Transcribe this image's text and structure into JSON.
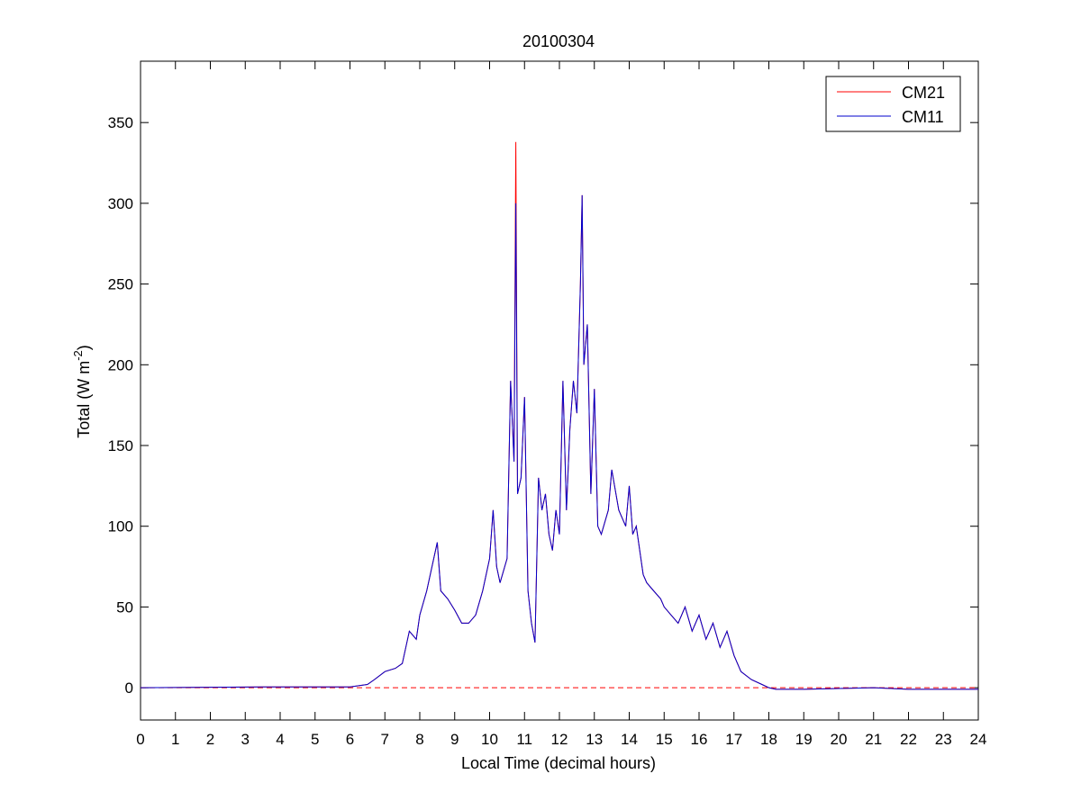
{
  "chart_data": {
    "type": "line",
    "title": "20100304",
    "xlabel": "Local Time (decimal hours)",
    "ylabel": {
      "prefix": "Total (W m",
      "superscript": "-2",
      "suffix": ")"
    },
    "xlim": [
      0,
      24
    ],
    "ylim": [
      -20,
      388
    ],
    "xticks": [
      0,
      1,
      2,
      3,
      4,
      5,
      6,
      7,
      8,
      9,
      10,
      11,
      12,
      13,
      14,
      15,
      16,
      17,
      18,
      19,
      20,
      21,
      22,
      23,
      24
    ],
    "yticks": [
      0,
      50,
      100,
      150,
      200,
      250,
      300,
      350
    ],
    "grid": false,
    "legend_position": "top-right",
    "reference_line": {
      "y": 0,
      "style": "dashed",
      "color": "#ff0000"
    },
    "series": [
      {
        "name": "CM21",
        "color": "#ff0000",
        "x": [
          0,
          3.5,
          6.0,
          6.5,
          6.7,
          7.0,
          7.3,
          7.5,
          7.7,
          7.9,
          8.0,
          8.2,
          8.4,
          8.5,
          8.6,
          8.8,
          9.0,
          9.2,
          9.4,
          9.6,
          9.8,
          10.0,
          10.1,
          10.2,
          10.3,
          10.5,
          10.6,
          10.7,
          10.75,
          10.8,
          10.9,
          11.0,
          11.1,
          11.2,
          11.3,
          11.4,
          11.5,
          11.6,
          11.7,
          11.8,
          11.9,
          12.0,
          12.1,
          12.2,
          12.3,
          12.4,
          12.5,
          12.6,
          12.65,
          12.7,
          12.8,
          12.9,
          13.0,
          13.1,
          13.2,
          13.4,
          13.5,
          13.7,
          13.9,
          14.0,
          14.1,
          14.2,
          14.4,
          14.5,
          14.7,
          14.9,
          15.0,
          15.2,
          15.4,
          15.6,
          15.8,
          16.0,
          16.2,
          16.4,
          16.6,
          16.8,
          17.0,
          17.2,
          17.5,
          17.8,
          18.0,
          18.2,
          19,
          20,
          21,
          22,
          23,
          24
        ],
        "y": [
          0,
          0.5,
          0.5,
          2,
          5,
          10,
          12,
          15,
          35,
          30,
          45,
          60,
          80,
          90,
          60,
          55,
          48,
          40,
          40,
          45,
          60,
          80,
          110,
          75,
          65,
          80,
          190,
          140,
          338,
          120,
          130,
          180,
          60,
          40,
          28,
          130,
          110,
          120,
          95,
          85,
          110,
          95,
          190,
          110,
          160,
          190,
          170,
          250,
          305,
          200,
          225,
          120,
          185,
          100,
          95,
          110,
          135,
          110,
          100,
          125,
          95,
          100,
          70,
          65,
          60,
          55,
          50,
          45,
          40,
          50,
          35,
          45,
          30,
          40,
          25,
          35,
          20,
          10,
          5,
          2,
          0,
          -1,
          -1,
          -0.5,
          0,
          -1,
          -1,
          -1
        ]
      },
      {
        "name": "CM11",
        "color": "#0000cc",
        "x": [
          0,
          3.5,
          6.0,
          6.5,
          6.7,
          7.0,
          7.3,
          7.5,
          7.7,
          7.9,
          8.0,
          8.2,
          8.4,
          8.5,
          8.6,
          8.8,
          9.0,
          9.2,
          9.4,
          9.6,
          9.8,
          10.0,
          10.1,
          10.2,
          10.3,
          10.5,
          10.6,
          10.7,
          10.75,
          10.8,
          10.9,
          11.0,
          11.1,
          11.2,
          11.3,
          11.4,
          11.5,
          11.6,
          11.7,
          11.8,
          11.9,
          12.0,
          12.1,
          12.2,
          12.3,
          12.4,
          12.5,
          12.6,
          12.65,
          12.7,
          12.8,
          12.9,
          13.0,
          13.1,
          13.2,
          13.4,
          13.5,
          13.7,
          13.9,
          14.0,
          14.1,
          14.2,
          14.4,
          14.5,
          14.7,
          14.9,
          15.0,
          15.2,
          15.4,
          15.6,
          15.8,
          16.0,
          16.2,
          16.4,
          16.6,
          16.8,
          17.0,
          17.2,
          17.5,
          17.8,
          18.0,
          18.2,
          19,
          20,
          21,
          22,
          23,
          24
        ],
        "y": [
          0,
          0.5,
          0.5,
          2,
          5,
          10,
          12,
          15,
          35,
          30,
          45,
          60,
          80,
          90,
          60,
          55,
          48,
          40,
          40,
          45,
          60,
          80,
          110,
          75,
          65,
          80,
          190,
          140,
          300,
          120,
          130,
          180,
          60,
          40,
          28,
          130,
          110,
          120,
          95,
          85,
          110,
          95,
          190,
          110,
          160,
          190,
          170,
          250,
          305,
          200,
          225,
          120,
          185,
          100,
          95,
          110,
          135,
          110,
          100,
          125,
          95,
          100,
          70,
          65,
          60,
          55,
          50,
          45,
          40,
          50,
          35,
          45,
          30,
          40,
          25,
          35,
          20,
          10,
          5,
          2,
          0,
          -1,
          -1,
          -0.5,
          0,
          -1,
          -1,
          -1
        ]
      }
    ]
  }
}
